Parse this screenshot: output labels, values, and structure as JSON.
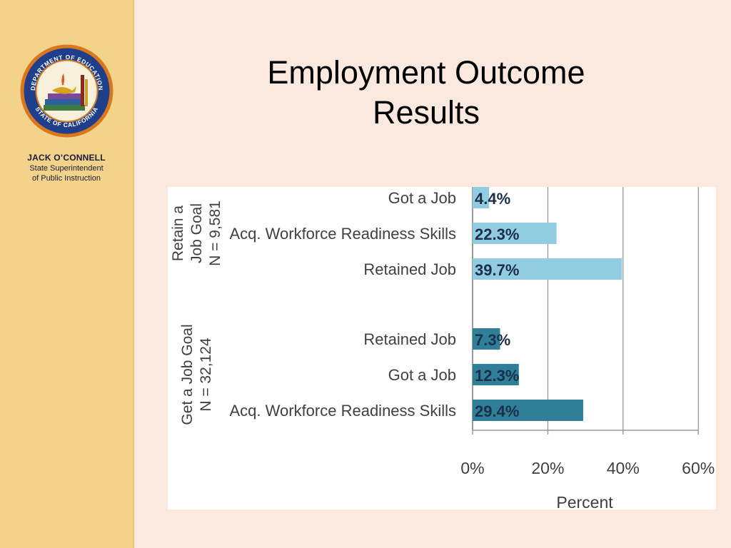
{
  "slide": {
    "title_line1": "Employment Outcome",
    "title_line2": "Results"
  },
  "sidebar": {
    "seal_logo": "DEPARTMENT OF EDUCATION STATE OF CALIFORNIA",
    "name": "JACK O’CONNELL",
    "role_line1": "State Superintendent",
    "role_line2": "of Public Instruction"
  },
  "chart_data": {
    "type": "bar",
    "orientation": "horizontal",
    "xlabel": "Percent",
    "xlim": [
      0,
      60
    ],
    "xticks": [
      "0%",
      "20%",
      "40%",
      "60%"
    ],
    "grid": "vertical gridlines at 20%, 40%, 60%",
    "groups": [
      {
        "label_lines": [
          "Retain a",
          "Job Goal",
          "N = 9,581"
        ],
        "color": "#92cce0",
        "bars": [
          {
            "category": "Got a Job",
            "value": 4.4,
            "label": "4.4%"
          },
          {
            "category": "Acq. Workforce Readiness Skills",
            "value": 22.3,
            "label": "22.3%"
          },
          {
            "category": "Retained Job",
            "value": 39.7,
            "label": "39.7%"
          }
        ]
      },
      {
        "label_lines": [
          "Get a Job Goal",
          "N = 32,124"
        ],
        "color": "#2f7f98",
        "bars": [
          {
            "category": "Retained Job",
            "value": 7.3,
            "label": "7.3%"
          },
          {
            "category": "Got a Job",
            "value": 12.3,
            "label": "12.3%"
          },
          {
            "category": "Acq. Workforce Readiness Skills",
            "value": 29.4,
            "label": "29.4%"
          }
        ]
      }
    ]
  }
}
